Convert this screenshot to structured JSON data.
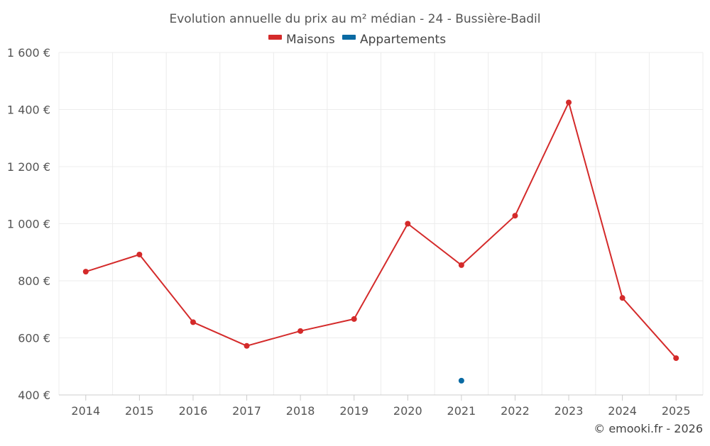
{
  "chart_data": {
    "type": "line",
    "title": "Evolution annuelle du prix au m² médian - 24 - Bussière-Badil",
    "xlabel": "",
    "ylabel": "",
    "categories": [
      "2014",
      "2015",
      "2016",
      "2017",
      "2018",
      "2019",
      "2020",
      "2021",
      "2022",
      "2023",
      "2024",
      "2025"
    ],
    "y_ticks": [
      400,
      600,
      800,
      1000,
      1200,
      1400,
      1600
    ],
    "y_tick_labels": [
      "400 €",
      "600 €",
      "800 €",
      "1 000 €",
      "1 200 €",
      "1 400 €",
      "1 600 €"
    ],
    "ylim": [
      400,
      1600
    ],
    "grid": true,
    "legend_position": "top-center",
    "series": [
      {
        "name": "Maisons",
        "color": "#d42a2a",
        "values": [
          832,
          892,
          655,
          572,
          624,
          666,
          1000,
          855,
          1028,
          1425,
          740,
          529
        ]
      },
      {
        "name": "Appartements",
        "color": "#0a6aa3",
        "values": [
          null,
          null,
          null,
          null,
          null,
          null,
          null,
          450,
          null,
          null,
          null,
          null
        ]
      }
    ],
    "credit": "© emooki.fr - 2026"
  }
}
